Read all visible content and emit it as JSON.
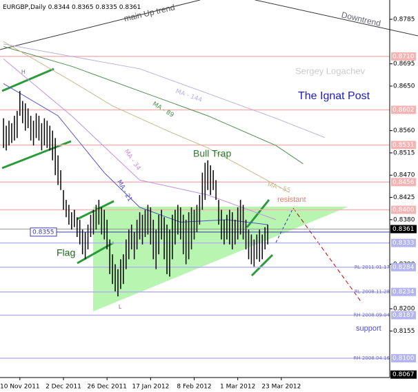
{
  "chart_data": {
    "type": "ohlc",
    "title": "EURGBP,Daily",
    "ohlc_header": [
      0.8344,
      0.8365,
      0.8335,
      0.8361
    ],
    "xlim": [
      -1.3,
      141.8
    ],
    "xticks": [
      {
        "value": 6,
        "label": "10 Nov 2011"
      },
      {
        "value": 22,
        "label": "2 Dec 2011"
      },
      {
        "value": 38,
        "label": "26 Dec 2011"
      },
      {
        "value": 54,
        "label": "17 Jan 2012"
      },
      {
        "value": 70,
        "label": "8 Feb 2012"
      },
      {
        "value": 86,
        "label": "1 Mar 2012"
      },
      {
        "value": 102,
        "label": "23 Mar 2012"
      }
    ],
    "ylim": [
      0.8061,
      0.8824
    ],
    "yticks": [
      0.8785,
      0.8695,
      {
        "value": 0.865,
        "label": "0.8650"
      },
      {
        "value": 0.856,
        "label": "0.8560"
      },
      0.8515,
      {
        "value": 0.847,
        "label": "0.8470"
      },
      0.8425,
      {
        "value": 0.838,
        "label": "0.8380"
      },
      {
        "value": 0.829,
        "label": "0.8290"
      },
      {
        "value": 0.82,
        "label": "0.8200"
      },
      0.8155
    ],
    "high": [
      0.8585,
      0.857,
      0.858,
      0.8575,
      0.859,
      0.86,
      0.864,
      0.862,
      0.8615,
      0.8605,
      0.859,
      0.858,
      0.8595,
      0.859,
      0.8575,
      0.8585,
      0.858,
      0.857,
      0.856,
      0.8545,
      0.851,
      0.848,
      0.844,
      0.842,
      0.841,
      0.8395,
      0.84,
      0.8385,
      0.838,
      0.836,
      0.8355,
      0.837,
      0.839,
      0.84,
      0.841,
      0.842,
      0.8405,
      0.84,
      0.838,
      0.834,
      0.831,
      0.829,
      0.828,
      0.83,
      0.831,
      0.834,
      0.836,
      0.837,
      0.8355,
      0.838,
      0.8395,
      0.839,
      0.84,
      0.841,
      0.8405,
      0.838,
      0.836,
      0.839,
      0.84,
      0.8385,
      0.837,
      0.836,
      0.839,
      0.84,
      0.841,
      0.8405,
      0.839,
      0.838,
      0.8395,
      0.8405,
      0.84,
      0.841,
      0.843,
      0.8475,
      0.8495,
      0.85,
      0.849,
      0.848,
      0.846,
      0.842,
      0.84,
      0.838,
      0.839,
      0.84,
      0.8395,
      0.838,
      0.8405,
      0.842,
      0.841,
      0.838,
      0.836,
      0.835,
      0.834,
      0.835,
      0.836,
      0.835,
      0.8365,
      0.837
    ],
    "low": [
      0.8525,
      0.852,
      0.853,
      0.8535,
      0.854,
      0.8545,
      0.859,
      0.8575,
      0.856,
      0.8565,
      0.854,
      0.853,
      0.8545,
      0.854,
      0.852,
      0.853,
      0.8525,
      0.852,
      0.85,
      0.847,
      0.845,
      0.844,
      0.84,
      0.8385,
      0.837,
      0.836,
      0.8365,
      0.8345,
      0.833,
      0.831,
      0.83,
      0.832,
      0.8345,
      0.835,
      0.836,
      0.837,
      0.835,
      0.834,
      0.832,
      0.827,
      0.825,
      0.8235,
      0.8225,
      0.824,
      0.825,
      0.828,
      0.83,
      0.832,
      0.83,
      0.832,
      0.834,
      0.833,
      0.8345,
      0.835,
      0.833,
      0.83,
      0.828,
      0.831,
      0.834,
      0.83,
      0.827,
      0.8265,
      0.83,
      0.833,
      0.835,
      0.834,
      0.831,
      0.829,
      0.83,
      0.832,
      0.834,
      0.8355,
      0.837,
      0.84,
      0.842,
      0.844,
      0.843,
      0.844,
      0.842,
      0.837,
      0.834,
      0.833,
      0.834,
      0.833,
      0.832,
      0.833,
      0.834,
      0.835,
      0.834,
      0.832,
      0.83,
      0.829,
      0.8285,
      0.83,
      0.8295,
      0.83,
      0.832,
      0.833
    ],
    "color": "#000000",
    "series": [
      {
        "name": "MA - 144",
        "color": "#b8b0e0",
        "x": [
          0,
          25,
          50,
          75,
          100,
          118
        ],
        "values": [
          0.8735,
          0.871,
          0.8685,
          0.8635,
          0.8585,
          0.8546
        ]
      },
      {
        "name": "MA - 89",
        "color": "#4f8f4f",
        "x": [
          0,
          25,
          50,
          75,
          100,
          110
        ],
        "values": [
          0.873,
          0.869,
          0.864,
          0.859,
          0.853,
          0.8493
        ]
      },
      {
        "name": "MA - 55",
        "color": "#c8b88a",
        "x": [
          0,
          25,
          40,
          60,
          75,
          90,
          105
        ],
        "values": [
          0.874,
          0.866,
          0.861,
          0.856,
          0.8525,
          0.848,
          0.8435
        ]
      },
      {
        "name": "MA - 34",
        "color": "#c090e0",
        "x": [
          0,
          25,
          50,
          75,
          100
        ],
        "values": [
          0.8705,
          0.859,
          0.846,
          0.843,
          0.838
        ]
      },
      {
        "name": "MA - 21",
        "color": "#5050d0",
        "x": [
          0,
          20,
          37,
          50,
          65,
          82,
          97
        ],
        "values": [
          0.8655,
          0.859,
          0.8475,
          0.8405,
          0.8375,
          0.838,
          0.837
        ]
      }
    ],
    "levels": [
      {
        "value": 0.871,
        "label": "0.8710",
        "color": "#f4b4b4"
      },
      {
        "value": 0.8602,
        "color": "#f4b4b4"
      },
      {
        "value": 0.8531,
        "color": "#f4b4b4"
      },
      {
        "value": 0.8456,
        "color": "#f4b4b4"
      },
      {
        "value": 0.84,
        "label": "0.8400",
        "color": "#f4b4b4"
      },
      {
        "value": 0.8333,
        "color": "#b4b4f0"
      },
      {
        "value": 0.8284,
        "tag": "RL 2011.01.17",
        "color": "#b4b4f0"
      },
      {
        "value": 0.8234,
        "tag": "RL 2008.11.28",
        "color": "#b4b4f0"
      },
      {
        "value": 0.8187,
        "tag": "RH 2008.09.04",
        "color": "#b4b4f0"
      },
      {
        "value": 0.81,
        "label": "0.8100",
        "tag": "RH 2008.04.16",
        "color": "#b4b4f0"
      }
    ],
    "price_markers": [
      0.8361,
      0.8067
    ],
    "left_marker": 0.8355,
    "annotations": {
      "up_trend": "main Up trend",
      "down_trend": "Downtrend",
      "author": "Sergey Logachev",
      "site": "The Ignat Post",
      "bull_trap": "Bull Trap",
      "resistant": "resistant",
      "flag": "Flag",
      "support": "support",
      "high_mark": "H",
      "low_mark": "L"
    }
  }
}
